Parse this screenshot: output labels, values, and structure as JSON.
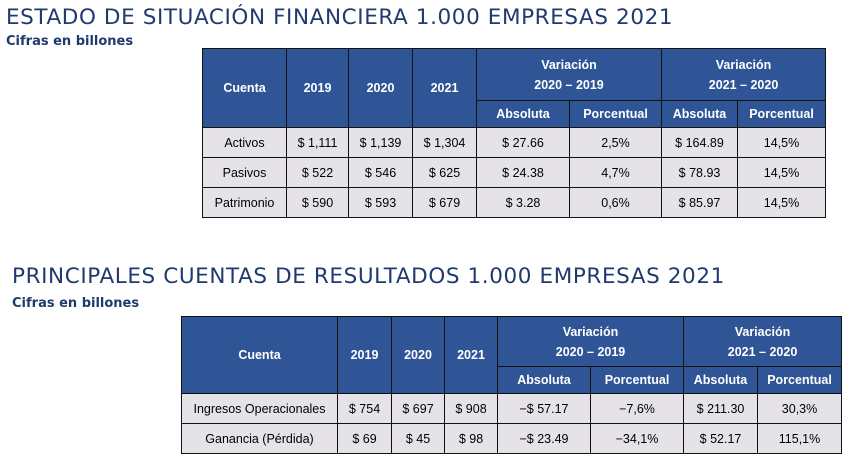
{
  "section1": {
    "title": "ESTADO DE SITUACIÓN FINANCIERA 1.000 EMPRESAS 2021",
    "subtitle": "Cifras en billones",
    "header": {
      "cuenta": "Cuenta",
      "y2019": "2019",
      "y2020": "2020",
      "y2021": "2021",
      "var1_line1": "Variación",
      "var1_line2": "2020 – 2019",
      "var2_line1": "Variación",
      "var2_line2": "2021 – 2020",
      "absoluta1": "Absoluta",
      "porcentual1": "Porcentual",
      "absoluta2": "Absoluta",
      "porcentual2": "Porcentual"
    },
    "rows": [
      [
        "Activos",
        "$ 1,111",
        "$ 1,139",
        "$ 1,304",
        "$ 27.66",
        "2,5%",
        "$ 164.89",
        "14,5%"
      ],
      [
        "Pasivos",
        "$ 522",
        "$ 546",
        "$ 625",
        "$ 24.38",
        "4,7%",
        "$ 78.93",
        "14,5%"
      ],
      [
        "Patrimonio",
        "$ 590",
        "$ 593",
        "$ 679",
        "$ 3.28",
        "0,6%",
        "$ 85.97",
        "14,5%"
      ]
    ]
  },
  "section2": {
    "title": "PRINCIPALES CUENTAS DE RESULTADOS 1.000 EMPRESAS 2021",
    "subtitle": "Cifras en billones",
    "header": {
      "cuenta": "Cuenta",
      "y2019": "2019",
      "y2020": "2020",
      "y2021": "2021",
      "var1_line1": "Variación",
      "var1_line2": "2020 – 2019",
      "var2_line1": "Variación",
      "var2_line2": "2021 – 2020",
      "absoluta1": "Absoluta",
      "porcentual1": "Porcentual",
      "absoluta2": "Absoluta",
      "porcentual2": "Porcentual"
    },
    "rows": [
      [
        "Ingresos Operacionales",
        "$ 754",
        "$ 697",
        "$ 908",
        "−$ 57.17",
        "−7,6%",
        "$ 211.30",
        "30,3%"
      ],
      [
        "Ganancia (Pérdida)",
        "$ 69",
        "$ 45",
        "$ 98",
        "−$ 23.49",
        "−34,1%",
        "$ 52.17",
        "115,1%"
      ]
    ]
  }
}
